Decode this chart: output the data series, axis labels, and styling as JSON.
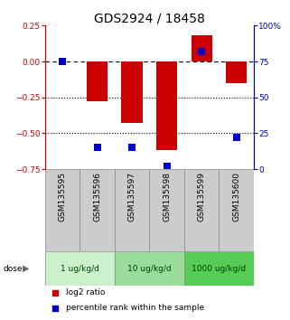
{
  "title": "GDS2924 / 18458",
  "samples": [
    "GSM135595",
    "GSM135596",
    "GSM135597",
    "GSM135598",
    "GSM135599",
    "GSM135600"
  ],
  "log2_ratio": [
    0.0,
    -0.28,
    -0.43,
    -0.62,
    0.18,
    -0.15
  ],
  "percentile_rank": [
    75,
    15,
    15,
    2,
    82,
    22
  ],
  "dose_groups": [
    {
      "label": "1 ug/kg/d",
      "start": 0,
      "end": 2,
      "color": "#ccf0cc"
    },
    {
      "label": "10 ug/kg/d",
      "start": 2,
      "end": 4,
      "color": "#99dd99"
    },
    {
      "label": "1000 ug/kg/d",
      "start": 4,
      "end": 6,
      "color": "#55cc55"
    }
  ],
  "bar_color": "#cc0000",
  "square_color": "#0000cc",
  "ylim_left": [
    -0.75,
    0.25
  ],
  "ylim_right": [
    0,
    100
  ],
  "yticks_left": [
    -0.75,
    -0.5,
    -0.25,
    0,
    0.25
  ],
  "yticks_right": [
    0,
    25,
    50,
    75,
    100
  ],
  "bar_width": 0.6,
  "square_size": 30,
  "left_axis_color": "#cc0000",
  "right_axis_color": "#0000cc",
  "title_fontsize": 10,
  "tick_fontsize": 6.5,
  "legend_fontsize": 6.5,
  "sample_bg_color": "#cccccc",
  "grid_color": "#888888"
}
